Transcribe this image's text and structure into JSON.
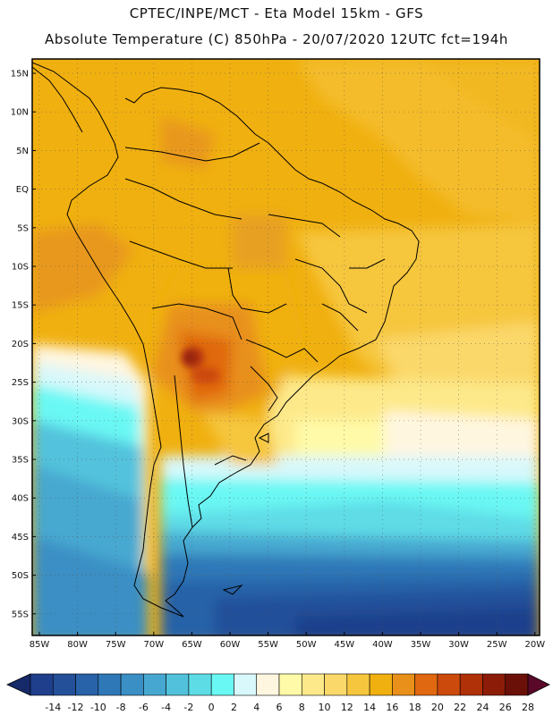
{
  "header": {
    "line1": "CPTEC/INPE/MCT -  Eta Model 15km - GFS",
    "line2": "Absolute Temperature (C) 850hPa - 20/07/2020 12UTC fct=194h"
  },
  "map": {
    "lat_labels": [
      "15N",
      "10N",
      "5N",
      "EQ",
      "5S",
      "10S",
      "15S",
      "20S",
      "25S",
      "30S",
      "35S",
      "40S",
      "45S",
      "50S",
      "55S"
    ],
    "lon_labels": [
      "85W",
      "80W",
      "75W",
      "70W",
      "65W",
      "60W",
      "55W",
      "50W",
      "45W",
      "40W",
      "35W",
      "30W",
      "25W",
      "20W"
    ]
  },
  "colorbar": {
    "labels": [
      "-14",
      "-12",
      "-10",
      "-8",
      "-6",
      "-4",
      "-2",
      "0",
      "2",
      "4",
      "6",
      "8",
      "10",
      "12",
      "14",
      "16",
      "18",
      "20",
      "22",
      "24",
      "26",
      "28"
    ],
    "colors": [
      "#1f3f8c",
      "#24509a",
      "#2862a8",
      "#2f78b8",
      "#3a8fc4",
      "#46a8d0",
      "#52c2dc",
      "#5edce6",
      "#6af8f4",
      "#d8f8fb",
      "#fff6e0",
      "#fffaa8",
      "#fde98a",
      "#fbd86a",
      "#f6c63e",
      "#f0b010",
      "#e8901a",
      "#e06810",
      "#cc4a0c",
      "#b03008",
      "#8c1c08",
      "#6a1008"
    ],
    "under_color": "#162a6a",
    "over_color": "#5a0a28"
  }
}
